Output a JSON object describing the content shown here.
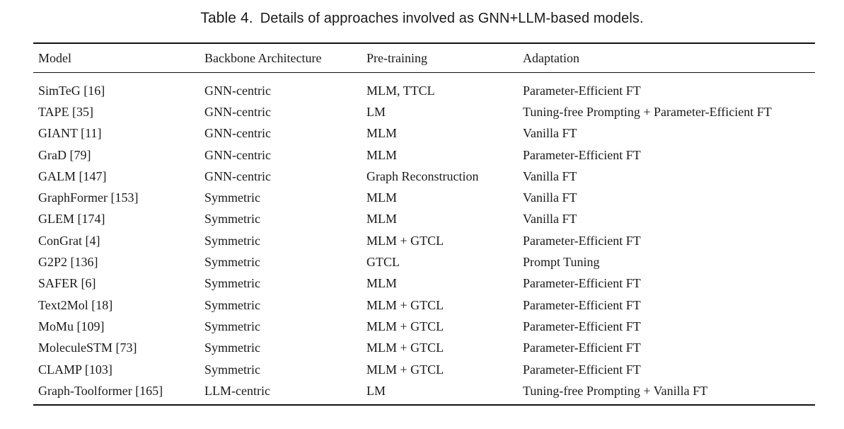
{
  "caption": {
    "label": "Table 4.",
    "text": "Details of approaches involved as GNN+LLM-based models."
  },
  "table": {
    "headers": [
      "Model",
      "Backbone Architecture",
      "Pre-training",
      "Adaptation"
    ],
    "rows": [
      [
        "SimTeG [16]",
        "GNN-centric",
        "MLM, TTCL",
        "Parameter-Efficient FT"
      ],
      [
        "TAPE [35]",
        "GNN-centric",
        "LM",
        "Tuning-free Prompting + Parameter-Efficient FT"
      ],
      [
        "GIANT [11]",
        "GNN-centric",
        "MLM",
        "Vanilla FT"
      ],
      [
        "GraD [79]",
        "GNN-centric",
        "MLM",
        "Parameter-Efficient FT"
      ],
      [
        "GALM [147]",
        "GNN-centric",
        "Graph Reconstruction",
        "Vanilla FT"
      ],
      [
        "GraphFormer [153]",
        "Symmetric",
        "MLM",
        "Vanilla FT"
      ],
      [
        "GLEM [174]",
        "Symmetric",
        "MLM",
        "Vanilla FT"
      ],
      [
        "ConGrat [4]",
        "Symmetric",
        "MLM + GTCL",
        "Parameter-Efficient FT"
      ],
      [
        "G2P2 [136]",
        "Symmetric",
        "GTCL",
        "Prompt Tuning"
      ],
      [
        "SAFER [6]",
        "Symmetric",
        "MLM",
        "Parameter-Efficient FT"
      ],
      [
        "Text2Mol [18]",
        "Symmetric",
        "MLM + GTCL",
        "Parameter-Efficient FT"
      ],
      [
        "MoMu [109]",
        "Symmetric",
        "MLM + GTCL",
        "Parameter-Efficient FT"
      ],
      [
        "MoleculeSTM [73]",
        "Symmetric",
        "MLM + GTCL",
        "Parameter-Efficient FT"
      ],
      [
        "CLAMP [103]",
        "Symmetric",
        "MLM + GTCL",
        "Parameter-Efficient FT"
      ],
      [
        "Graph-Toolformer [165]",
        "LLM-centric",
        "LM",
        "Tuning-free Prompting + Vanilla FT"
      ]
    ]
  }
}
